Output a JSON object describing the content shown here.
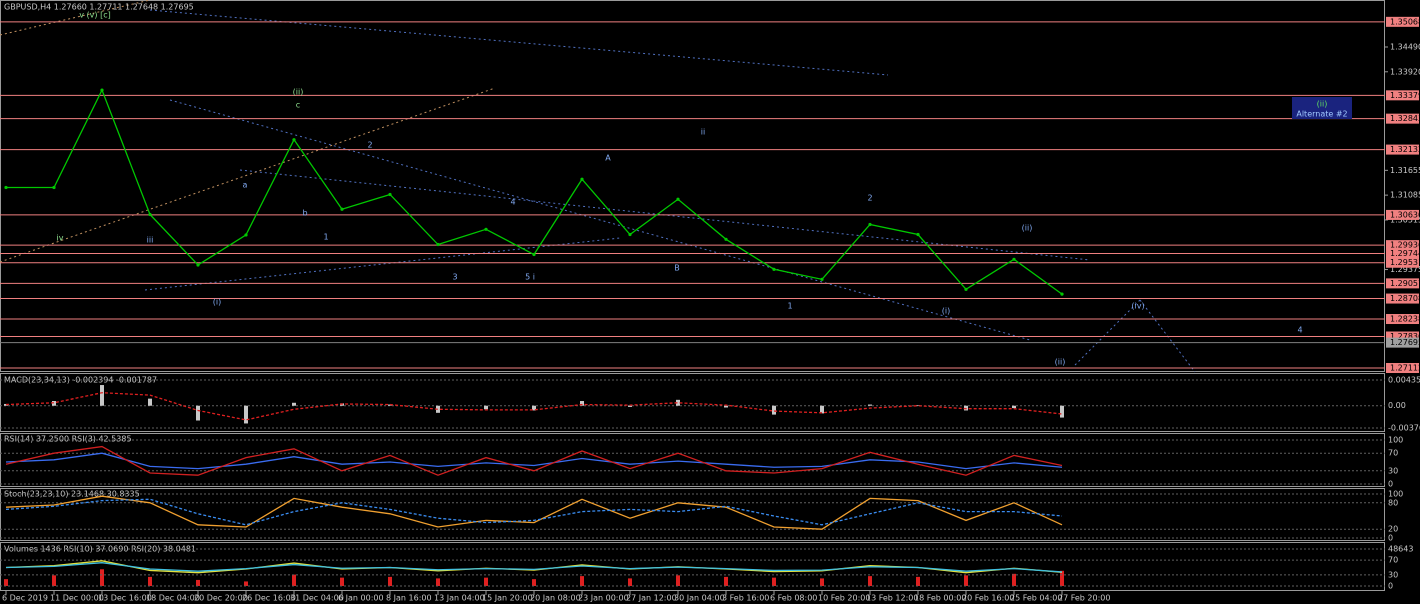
{
  "chart_data": [
    {
      "type": "line",
      "title": "GBPUSD,H4  1.27660 1.27711 1.27648 1.27695",
      "color": "#00c800",
      "categories": [
        "6 Dec 2019",
        "11 Dec 00:00",
        "13 Dec 16:00",
        "18 Dec 04:00",
        "20 Dec 20:00",
        "26 Dec 16:00",
        "31 Dec 04:00",
        "6 Jan 00:00",
        "8 Jan 16:00",
        "13 Jan 04:00",
        "15 Jan 20:00",
        "20 Jan 08:00",
        "23 Jan 00:00",
        "27 Jan 12:00",
        "30 Jan 04:00",
        "3 Feb 16:00",
        "6 Feb 08:00",
        "10 Feb 20:00",
        "13 Feb 12:00",
        "18 Feb 00:00",
        "20 Feb 16:00",
        "25 Feb 04:00",
        "27 Feb 20:00"
      ],
      "values": [
        1.3126,
        1.3126,
        1.335,
        1.3064,
        1.2948,
        1.3017,
        1.3236,
        1.3076,
        1.311,
        1.2995,
        1.303,
        1.2972,
        1.3145,
        1.3018,
        1.3099,
        1.3007,
        1.2938,
        1.2915,
        1.3041,
        1.3018,
        1.2892,
        1.2961,
        1.2881
      ],
      "ylim": [
        1.2702,
        1.3557
      ],
      "yticks": [
        {
          "value": 1.3449,
          "label": "1.34490"
        },
        {
          "value": 1.3392,
          "label": "1.33920"
        },
        {
          "value": 1.31655,
          "label": "1.31655"
        },
        {
          "value": 1.31085,
          "label": "1.31085"
        },
        {
          "value": 1.30515,
          "label": "1.30515"
        },
        {
          "value": 1.29375,
          "label": "1.29375"
        }
      ],
      "levels": [
        {
          "value": 1.35068,
          "label": "1.35068"
        },
        {
          "value": 1.33379,
          "label": "1.33379"
        },
        {
          "value": 1.32843,
          "label": "1.32843"
        },
        {
          "value": 1.32132,
          "label": "1.32132"
        },
        {
          "value": 1.3063,
          "label": "1.30630"
        },
        {
          "value": 1.29936,
          "label": "1.29936"
        },
        {
          "value": 1.29744,
          "label": "1.29744"
        },
        {
          "value": 1.29531,
          "label": "1.29531"
        },
        {
          "value": 1.29057,
          "label": "1.29057"
        },
        {
          "value": 1.28708,
          "label": "1.28708"
        },
        {
          "value": 1.28238,
          "label": "1.28238"
        },
        {
          "value": 1.27836,
          "label": "1.27836"
        },
        {
          "value": 1.27112,
          "label": "1.27112"
        }
      ],
      "last_price": {
        "value": 1.27695,
        "label": "1.27695"
      },
      "box": [
        "(ii)",
        "Alternate #2"
      ],
      "annotations": [
        "v (v) [c]",
        "(ii)",
        "c",
        "(i)",
        "ii",
        "2",
        "(ii)",
        "(i)",
        "(ii)",
        "(iv)",
        "4",
        "iv",
        "iii",
        "a",
        "b",
        "1",
        "2",
        "3",
        "4",
        "5  i",
        "A",
        "B",
        "1"
      ]
    },
    {
      "type": "bar",
      "title": "MACD(23,34,13) -0.002394 -0.001787",
      "color": "#c8c8c8",
      "values": [
        0.0003,
        0.0008,
        0.0035,
        0.0012,
        -0.0025,
        -0.003,
        0.0005,
        0.0004,
        0.0002,
        -0.0012,
        -0.0006,
        -0.0008,
        0.0008,
        -0.0002,
        0.001,
        -0.0003,
        -0.0015,
        -0.0013,
        0.0002,
        0.0001,
        -0.0008,
        -0.0004,
        -0.002
      ],
      "signal": [
        0.0002,
        0.0005,
        0.0022,
        0.0018,
        -0.0008,
        -0.0024,
        -0.0006,
        0.0003,
        0.0002,
        -0.0006,
        -0.0007,
        -0.0007,
        0.0002,
        0.0001,
        0.0005,
        0.0001,
        -0.0009,
        -0.0012,
        -0.0004,
        0.0,
        -0.0005,
        -0.0005,
        -0.0014
      ],
      "signal_color": "#e02020",
      "ylim": [
        -0.003767,
        0.004354
      ],
      "yticks": [
        {
          "value": 0.004354,
          "label": "0.004354"
        },
        {
          "value": 0,
          "label": "0.00"
        },
        {
          "value": -0.003767,
          "label": "-0.003767"
        }
      ]
    },
    {
      "type": "line",
      "title": "RSI(14) 37.2500  RSI(3) 42.5385",
      "series": [
        {
          "color": "#3a6cf0",
          "values": [
            50,
            55,
            70,
            40,
            35,
            45,
            62,
            45,
            50,
            40,
            48,
            42,
            58,
            45,
            52,
            45,
            38,
            40,
            55,
            50,
            35,
            48,
            38
          ]
        },
        {
          "color": "#d02020",
          "values": [
            45,
            70,
            85,
            25,
            20,
            60,
            80,
            30,
            65,
            20,
            60,
            30,
            75,
            35,
            70,
            30,
            25,
            35,
            72,
            45,
            20,
            65,
            42
          ]
        }
      ],
      "ylim": [
        0,
        100
      ],
      "yticks": [
        100,
        70,
        30,
        0
      ]
    },
    {
      "type": "line",
      "title": "Stoch(23,23,10) 23.1468 30.8335",
      "series": [
        {
          "color": "#f0a030",
          "values": [
            70,
            75,
            95,
            80,
            30,
            25,
            90,
            70,
            55,
            25,
            40,
            35,
            88,
            45,
            80,
            70,
            25,
            20,
            90,
            85,
            40,
            80,
            30
          ]
        },
        {
          "color": "#3a8cf0",
          "values": [
            65,
            72,
            85,
            88,
            55,
            30,
            60,
            80,
            65,
            45,
            35,
            40,
            60,
            65,
            60,
            72,
            50,
            30,
            55,
            80,
            60,
            60,
            50
          ]
        }
      ],
      "ylim": [
        0,
        100
      ],
      "yticks": [
        100,
        80,
        20,
        0
      ]
    },
    {
      "type": "bar",
      "title": "Volumes 1436  RSI(10) 37.0690  RSI(20) 38.0481",
      "color": "#e02020",
      "values": [
        9000,
        14000,
        22000,
        12000,
        8000,
        6000,
        15000,
        11000,
        12000,
        10000,
        11000,
        9000,
        13000,
        10000,
        14000,
        12000,
        11000,
        10000,
        13000,
        12000,
        14000,
        16000,
        20000
      ],
      "ylim": [
        0,
        48643
      ],
      "yticks": [
        48643
      ],
      "series": [
        {
          "color": "#e0e040",
          "axis": "y2",
          "values": [
            50,
            55,
            68,
            42,
            36,
            46,
            62,
            46,
            50,
            41,
            48,
            43,
            57,
            46,
            52,
            46,
            39,
            41,
            55,
            50,
            36,
            48,
            37
          ]
        },
        {
          "color": "#40c0e0",
          "axis": "y2",
          "values": [
            50,
            53,
            63,
            46,
            40,
            47,
            58,
            48,
            50,
            44,
            47,
            45,
            54,
            47,
            51,
            47,
            42,
            43,
            52,
            50,
            40,
            47,
            38
          ]
        }
      ],
      "y2lim": [
        0,
        100
      ],
      "y2ticks": [
        70,
        30,
        0
      ]
    }
  ]
}
